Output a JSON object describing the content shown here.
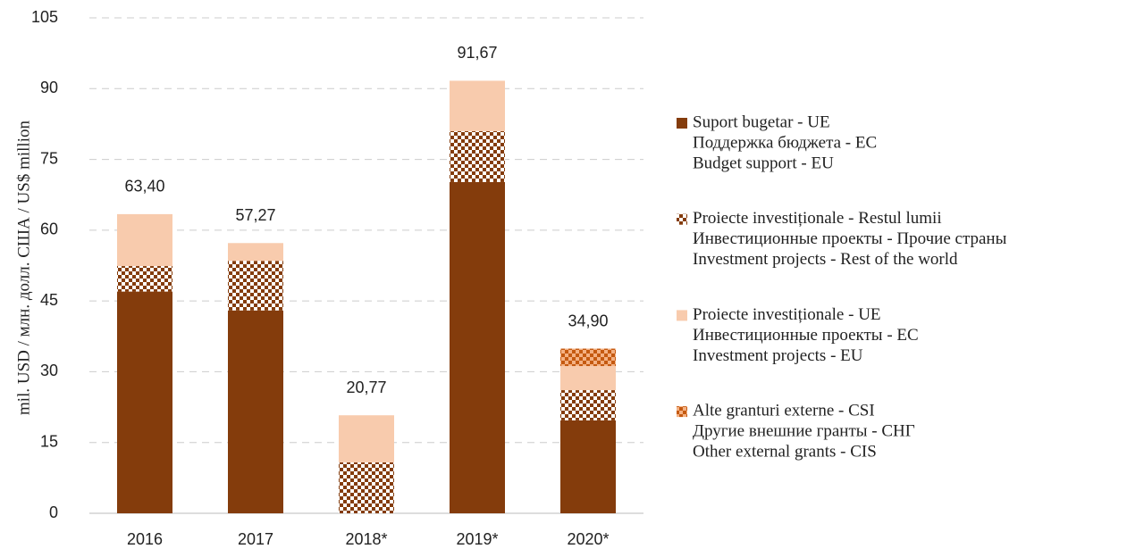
{
  "chart_data": {
    "type": "stacked-bar",
    "y_label": "mil. USD / млн. долл. США / US$ million",
    "categories": [
      "2016",
      "2017",
      "2018*",
      "2019*",
      "2020*"
    ],
    "series": [
      {
        "name": [
          "Suport bugetar - UE",
          "Поддержка бюджета - ЕС",
          "Budget support - EU"
        ],
        "color": "#843c0c",
        "pattern": "solid",
        "values": [
          47,
          43,
          0,
          70.2,
          19.7
        ]
      },
      {
        "name": [
          "Proiecte investiționale - Restul lumii",
          "Инвестиционные проекты - Прочие страны",
          "Investment projects - Rest of the world"
        ],
        "color": "#843c0c",
        "pattern": "checker",
        "values": [
          5.4,
          10.5,
          10.8,
          10.8,
          6.4
        ]
      },
      {
        "name": [
          "Proiecte investiționale - UE",
          "Инвестиционные проекты - ЕС",
          "Investment projects - EU"
        ],
        "color": "#f8cbad",
        "pattern": "solid",
        "values": [
          11.0,
          3.77,
          9.97,
          10.67,
          5.1
        ]
      },
      {
        "name": [
          "Alte granturi externe - CSI",
          "Другие внешние гранты - СНГ",
          "Other external grants - CIS"
        ],
        "color": "#c55a11",
        "pattern": "checker",
        "values": [
          0,
          0,
          0,
          0,
          3.7
        ]
      }
    ],
    "totals": [
      63.4,
      57.27,
      20.77,
      91.67,
      34.9
    ],
    "total_labels": [
      "63,40",
      "57,27",
      "20,77",
      "91,67",
      "34,90"
    ],
    "ylim": [
      0,
      105
    ],
    "yticks": [
      0,
      15,
      30,
      45,
      60,
      75,
      90,
      105
    ],
    "grid": true,
    "legend": "right"
  }
}
